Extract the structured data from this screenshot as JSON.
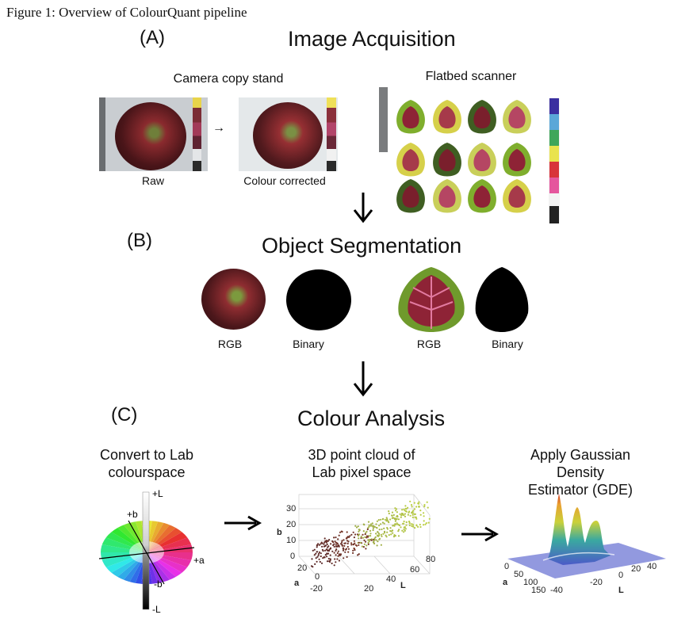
{
  "figure": {
    "caption": "Figure 1: Overview of ColourQuant pipeline"
  },
  "sections": {
    "a": {
      "letter": "(A)",
      "title": "Image Acquisition",
      "camera": {
        "title": "Camera copy stand",
        "raw": "Raw",
        "corrected": "Colour corrected"
      },
      "scanner": {
        "title": "Flatbed scanner"
      }
    },
    "b": {
      "letter": "(B)",
      "title": "Object Segmentation",
      "labels": [
        "RGB",
        "Binary",
        "RGB",
        "Binary"
      ]
    },
    "c": {
      "letter": "(C)",
      "title": "Colour Analysis",
      "step1": {
        "line1": "Convert to Lab",
        "line2": "colourspace"
      },
      "step2": {
        "line1": "3D point cloud of",
        "line2": "Lab pixel space"
      },
      "step3": {
        "line1": "Apply Gaussian Density",
        "line2": "Estimator (GDE)"
      },
      "wheel_labels": {
        "plus_l": "+L",
        "minus_l": "-L",
        "plus_a": "+a",
        "plus_b": "+b",
        "minus_b": "-b"
      },
      "cloud_axes": {
        "b_label": "b",
        "a_label": "a",
        "l_label": "L",
        "b_ticks": [
          "30",
          "20",
          "10",
          "0"
        ],
        "a_ticks": [
          "20",
          "0",
          "-20"
        ],
        "l_ticks": [
          "20",
          "40",
          "60",
          "80"
        ]
      },
      "gde_axes": {
        "a_label": "a",
        "l_label": "L",
        "a_ticks": [
          "0",
          "50",
          "100",
          "150"
        ],
        "l_ticks": [
          "-40",
          "-20",
          "0",
          "20",
          "40"
        ]
      }
    }
  },
  "colors": {
    "apple": "#5a1f24",
    "leaf_green": "#6f9a2c",
    "leaf_red": "#8e2336",
    "grey_board": "#d9dde0"
  }
}
